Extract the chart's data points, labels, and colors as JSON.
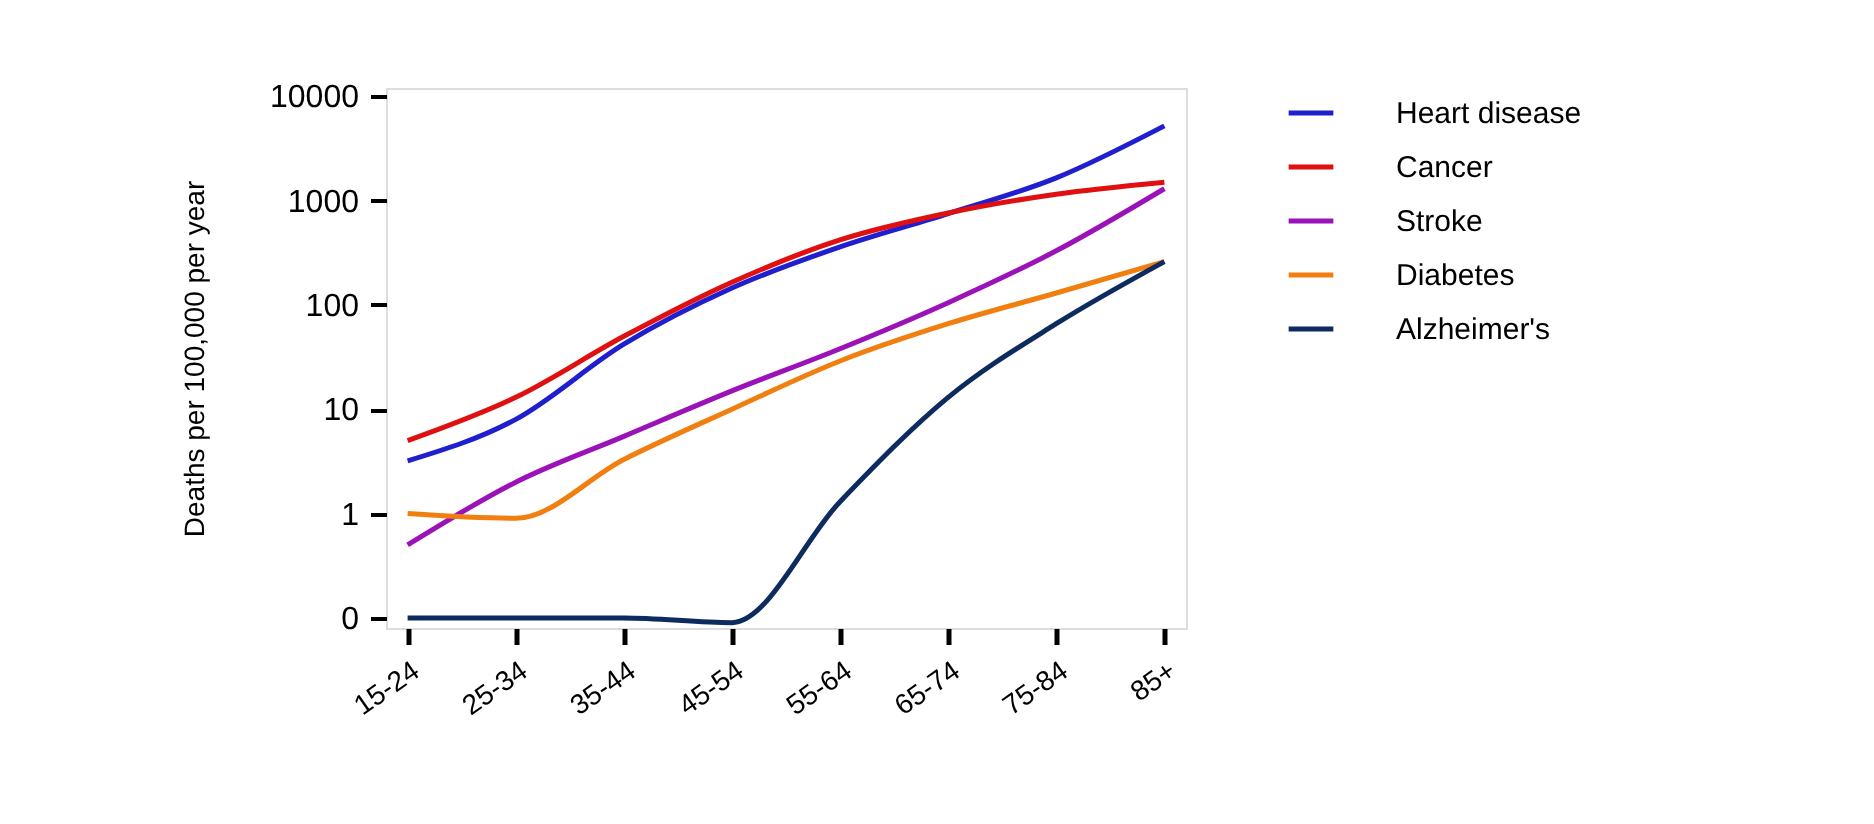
{
  "chart_data": {
    "type": "line",
    "ylabel": "Deaths per 100,000 per year",
    "categories": [
      "15-24",
      "25-34",
      "35-44",
      "45-54",
      "55-64",
      "65-74",
      "75-84",
      "85+"
    ],
    "log": "y",
    "ylim": [
      0.08,
      12000
    ],
    "yticks": [
      {
        "value": 0.1,
        "label": "0"
      },
      1,
      10,
      100,
      1000,
      10000
    ],
    "grid": false,
    "legend": "right",
    "marker": "none",
    "line_style": "solid",
    "series": [
      {
        "name": "Heart disease",
        "color": "#1f1fd0",
        "values": [
          3.2,
          8,
          42,
          145,
          360,
          750,
          1650,
          5200
        ]
      },
      {
        "name": "Cancer",
        "color": "#e01010",
        "values": [
          5,
          13,
          50,
          165,
          420,
          760,
          1150,
          1500
        ]
      },
      {
        "name": "Stroke",
        "color": "#9b12b8",
        "values": [
          0.5,
          2,
          5.5,
          15,
          38,
          105,
          330,
          1300
        ]
      },
      {
        "name": "Diabetes",
        "color": "#f07f10",
        "values": [
          1,
          0.9,
          3.3,
          10,
          29,
          66,
          130,
          260
        ]
      },
      {
        "name": "Alzheimer's",
        "color": "#0d2b5e",
        "values": [
          0.1,
          0.1,
          0.1,
          0.09,
          1.3,
          13,
          66,
          260
        ]
      }
    ]
  }
}
